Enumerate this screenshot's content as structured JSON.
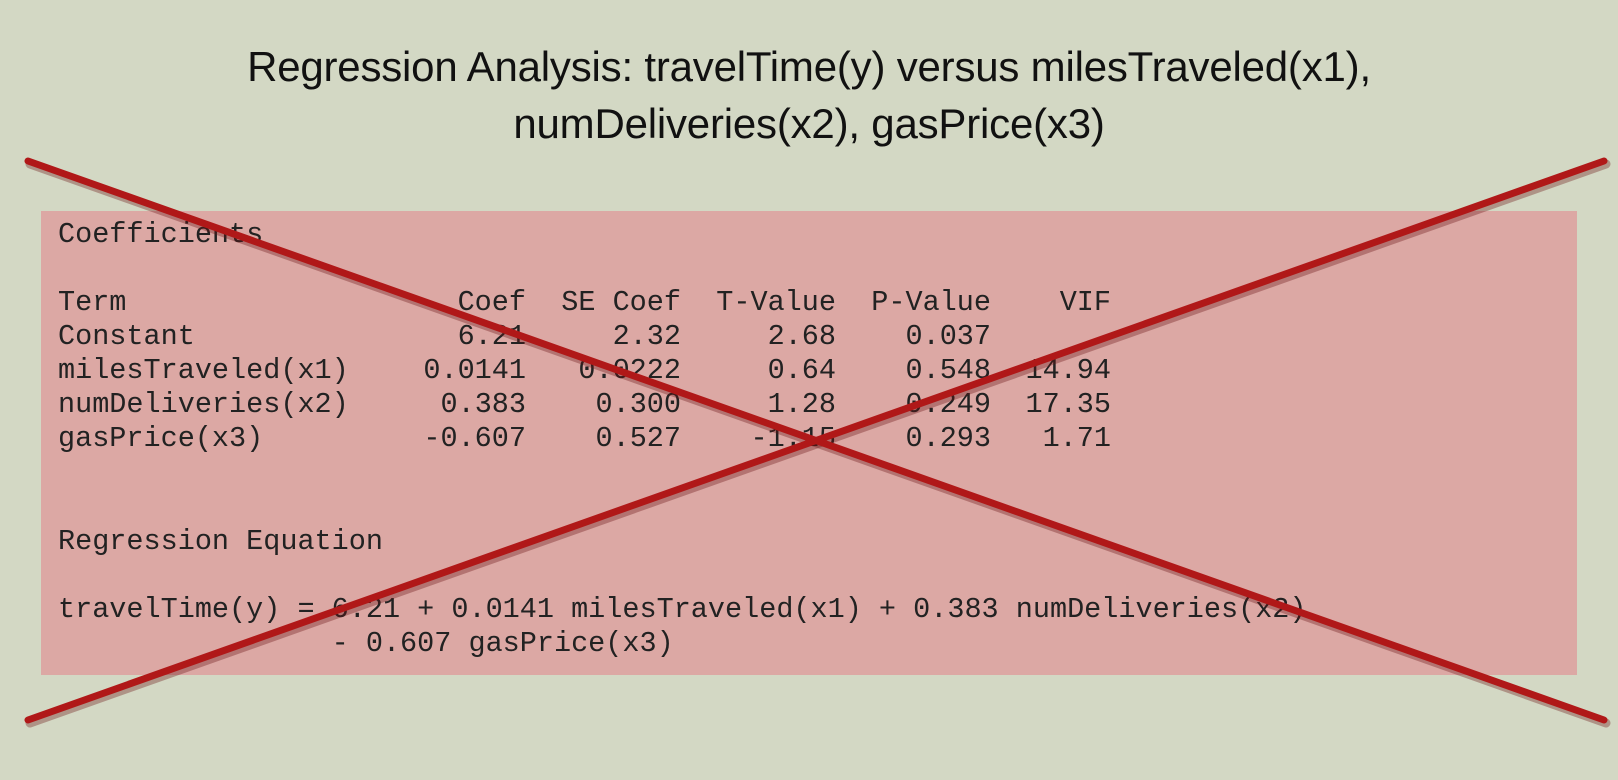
{
  "title": {
    "line1": "Regression Analysis: travelTime(y) versus milesTraveled(x1),",
    "line2": "numDeliveries(x2), gasPrice(x3)"
  },
  "coefficients": {
    "heading": "Coefficients",
    "headers": [
      "Term",
      "Coef",
      "SE Coef",
      "T-Value",
      "P-Value",
      "VIF"
    ],
    "rows": [
      [
        "Constant",
        "6.21",
        "2.32",
        "2.68",
        "0.037",
        ""
      ],
      [
        "milesTraveled(x1)",
        "0.0141",
        "0.0222",
        "0.64",
        "0.548",
        "14.94"
      ],
      [
        "numDeliveries(x2)",
        "0.383",
        "0.300",
        "1.28",
        "0.249",
        "17.35"
      ],
      [
        "gasPrice(x3)",
        "-0.607",
        "0.527",
        "-1.15",
        "0.293",
        "1.71"
      ]
    ]
  },
  "equation": {
    "heading": "Regression Equation",
    "line1": "travelTime(y) = 6.21 + 0.0141 milesTraveled(x1) + 0.383 numDeliveries(x2)",
    "line2": "                - 0.607 gasPrice(x3)"
  },
  "colors": {
    "background": "#d3d8c4",
    "panel": "#dca8a4",
    "cross": "#b01818"
  }
}
